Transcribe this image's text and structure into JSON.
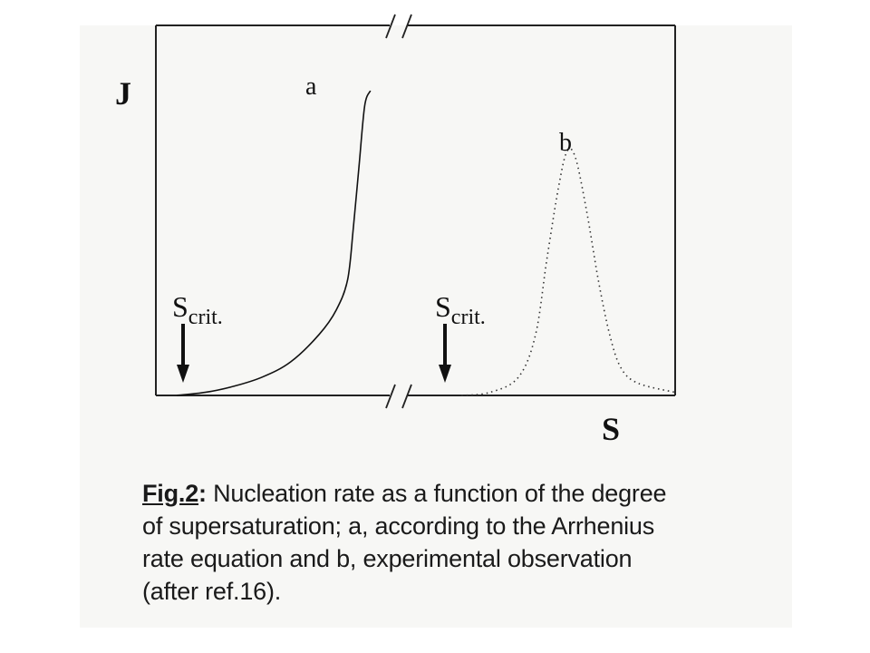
{
  "chart_data": {
    "type": "line",
    "title": "",
    "ylabel": "J",
    "xlabel": "S",
    "grid": false,
    "legend": "none",
    "axis_break": true,
    "colors": {
      "line": "#111111",
      "frame": "#222222"
    },
    "series": [
      {
        "name": "a",
        "style": "solid",
        "points": [
          [
            0.0,
            0.0
          ],
          [
            0.1,
            0.01
          ],
          [
            0.2,
            0.03
          ],
          [
            0.3,
            0.06
          ],
          [
            0.4,
            0.11
          ],
          [
            0.5,
            0.2
          ],
          [
            0.56,
            0.28
          ],
          [
            0.6,
            0.38
          ],
          [
            0.62,
            0.55
          ],
          [
            0.64,
            0.75
          ],
          [
            0.66,
            0.95
          ],
          [
            0.68,
            1.0
          ]
        ]
      },
      {
        "name": "b",
        "style": "dotted",
        "points": [
          [
            1.0,
            0.0
          ],
          [
            1.1,
            0.01
          ],
          [
            1.2,
            0.06
          ],
          [
            1.26,
            0.2
          ],
          [
            1.3,
            0.45
          ],
          [
            1.34,
            0.68
          ],
          [
            1.37,
            0.8
          ],
          [
            1.4,
            0.78
          ],
          [
            1.44,
            0.6
          ],
          [
            1.48,
            0.38
          ],
          [
            1.52,
            0.2
          ],
          [
            1.56,
            0.09
          ],
          [
            1.62,
            0.04
          ],
          [
            1.75,
            0.01
          ]
        ]
      }
    ],
    "annotations": [
      {
        "main": "S",
        "sub": "crit.",
        "arrow": true,
        "x": 0.0
      },
      {
        "main": "S",
        "sub": "crit.",
        "arrow": true,
        "x": 1.0
      }
    ],
    "xlim": [
      0,
      1.75
    ],
    "ylim": [
      0,
      1.0
    ]
  },
  "caption": {
    "label": "Fig.2",
    "separator": ":",
    "lines": [
      " Nucleation rate as a function of the degree",
      "of supersaturation; a, according to the Arrhenius",
      "rate equation and b, experimental observation",
      "(after ref.16)."
    ]
  }
}
